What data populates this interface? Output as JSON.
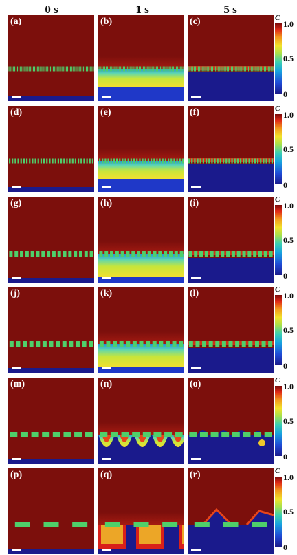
{
  "column_headers": [
    "0 s",
    "1 s",
    "5 s"
  ],
  "rows": [
    {
      "labels": [
        "(a)",
        "(b)",
        "(c)"
      ]
    },
    {
      "labels": [
        "(d)",
        "(e)",
        "(f)"
      ]
    },
    {
      "labels": [
        "(g)",
        "(h)",
        "(i)"
      ]
    },
    {
      "labels": [
        "(j)",
        "(k)",
        "(l)"
      ]
    },
    {
      "labels": [
        "(m)",
        "(n)",
        "(o)"
      ]
    },
    {
      "labels": [
        "(p)",
        "(q)",
        "(r)"
      ]
    }
  ],
  "colorbar": {
    "symbol": "C",
    "ticks": [
      "1.0",
      "0.5",
      "0"
    ]
  },
  "colors": {
    "high": "#7c0f0c",
    "low": "#1a1a8c",
    "particle": "#4fcf6a",
    "scalebar": "#ffffff"
  }
}
